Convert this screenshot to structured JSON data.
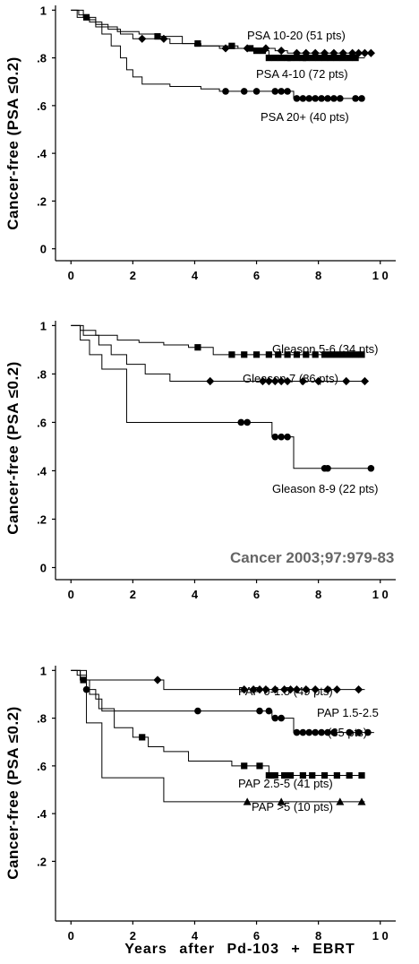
{
  "citation": "Cancer 2003;97:979-83",
  "x_axis_label": "Years after Pd-103 + EBRT",
  "colors": {
    "line": "#000000",
    "citation": "#666666"
  },
  "chart_data": [
    {
      "type": "line",
      "ylabel": "Cancer-free (PSA ≤0.2)",
      "xlim": [
        -0.5,
        10.5
      ],
      "ylim": [
        -0.05,
        1.02
      ],
      "x_ticks": [
        0,
        2,
        4,
        6,
        8,
        10
      ],
      "x_tick_labels": [
        "0",
        "2",
        "4",
        "6",
        "8",
        "1 0"
      ],
      "y_ticks": [
        0,
        0.2,
        0.4,
        0.6,
        0.8,
        1.0
      ],
      "y_tick_labels": [
        "0",
        ".2",
        ".4",
        ".6",
        ".8",
        "1"
      ],
      "series": [
        {
          "name": "PSA 10-20 (51 pts)",
          "marker": "diamond",
          "x": [
            0,
            0.25,
            0.5,
            0.8,
            1.2,
            1.6,
            2.0,
            2.3,
            2.5,
            2.8,
            3.2,
            3.6,
            4.0,
            4.8,
            5.6,
            6.2,
            6.6,
            7.0,
            8.0,
            9.5
          ],
          "y": [
            1.0,
            0.98,
            0.96,
            0.94,
            0.92,
            0.9,
            0.88,
            0.88,
            0.88,
            0.88,
            0.86,
            0.86,
            0.85,
            0.84,
            0.84,
            0.84,
            0.83,
            0.82,
            0.82,
            0.82
          ],
          "censored": [
            2.3,
            3.0,
            5.0,
            5.7,
            6.3,
            6.8,
            7.3,
            7.6,
            7.9,
            8.2,
            8.5,
            8.8,
            9.1,
            9.3,
            9.5,
            9.7
          ]
        },
        {
          "name": "PSA 4-10 (72 pts)",
          "marker": "square",
          "x": [
            0,
            0.2,
            0.6,
            1.0,
            1.5,
            2.2,
            2.8,
            3.6,
            4.2,
            5.4,
            6.0,
            6.4,
            9.5
          ],
          "y": [
            1.0,
            0.97,
            0.95,
            0.93,
            0.91,
            0.9,
            0.89,
            0.86,
            0.85,
            0.84,
            0.83,
            0.8,
            0.8
          ],
          "censored": [
            0.5,
            2.8,
            4.1,
            5.2,
            5.8,
            6.0,
            6.2,
            6.4,
            6.6,
            6.8,
            7.0,
            7.1,
            7.3,
            7.5,
            7.6,
            7.8,
            8.0,
            8.2,
            8.4,
            8.6,
            8.8,
            9.0,
            9.2
          ]
        },
        {
          "name": "PSA 20+ (40 pts)",
          "marker": "circle",
          "x": [
            0,
            0.4,
            0.8,
            1.0,
            1.3,
            1.6,
            1.8,
            2.0,
            2.3,
            3.2,
            4.2,
            4.8,
            5.4,
            7.2,
            9.5
          ],
          "y": [
            1.0,
            0.97,
            0.93,
            0.9,
            0.85,
            0.8,
            0.75,
            0.72,
            0.69,
            0.68,
            0.67,
            0.66,
            0.66,
            0.63,
            0.63
          ],
          "censored": [
            5.0,
            5.6,
            6.0,
            6.6,
            6.8,
            7.0,
            7.3,
            7.5,
            7.7,
            7.9,
            8.1,
            8.3,
            8.5,
            8.7,
            9.2,
            9.4
          ]
        }
      ]
    },
    {
      "type": "line",
      "ylabel": "Cancer-free (PSA ≤0.2)",
      "xlim": [
        -0.5,
        10.5
      ],
      "ylim": [
        -0.05,
        1.02
      ],
      "x_ticks": [
        0,
        2,
        4,
        6,
        8,
        10
      ],
      "x_tick_labels": [
        "0",
        "2",
        "4",
        "6",
        "8",
        "1 0"
      ],
      "y_ticks": [
        0,
        0.2,
        0.4,
        0.6,
        0.8,
        1.0
      ],
      "y_tick_labels": [
        "0",
        ".2",
        ".4",
        ".6",
        ".8",
        "1"
      ],
      "series": [
        {
          "name": "Gleason 5-6 (34 pts)",
          "marker": "square",
          "x": [
            0,
            0.3,
            0.8,
            1.5,
            2.2,
            3.0,
            3.8,
            4.6,
            9.5
          ],
          "y": [
            1.0,
            0.98,
            0.96,
            0.94,
            0.93,
            0.92,
            0.91,
            0.88,
            0.88
          ],
          "censored": [
            4.1,
            5.2,
            5.6,
            6.0,
            6.4,
            6.7,
            7.0,
            7.3,
            7.6,
            7.9,
            8.2,
            8.4,
            8.6,
            8.8,
            9.0,
            9.2,
            9.4
          ]
        },
        {
          "name": "Gleason 7 (86 pts)",
          "marker": "diamond",
          "x": [
            0,
            0.4,
            0.9,
            1.3,
            1.8,
            2.4,
            3.2,
            4.5,
            9.5
          ],
          "y": [
            1.0,
            0.96,
            0.92,
            0.88,
            0.84,
            0.8,
            0.77,
            0.77,
            0.77
          ],
          "censored": [
            4.5,
            6.2,
            6.4,
            6.6,
            6.8,
            7.0,
            7.5,
            8.0,
            8.9,
            9.5
          ]
        },
        {
          "name": "Gleason 8-9 (22 pts)",
          "marker": "circle",
          "x": [
            0,
            0.3,
            0.6,
            1.0,
            1.8,
            5.5,
            6.5,
            7.2,
            9.8
          ],
          "y": [
            1.0,
            0.94,
            0.88,
            0.82,
            0.6,
            0.6,
            0.54,
            0.41,
            0.41
          ],
          "censored": [
            5.5,
            5.7,
            6.6,
            6.8,
            7.0,
            8.2,
            8.3,
            9.7
          ]
        }
      ]
    },
    {
      "type": "line",
      "ylabel": "Cancer-free (PSA ≤0.2)",
      "xlim": [
        -0.5,
        10.5
      ],
      "ylim": [
        -0.05,
        1.02
      ],
      "x_ticks": [
        0,
        2,
        4,
        6,
        8,
        10
      ],
      "x_tick_labels": [
        "0",
        "2",
        "4",
        "6",
        "8",
        "1 0"
      ],
      "y_ticks": [
        0.2,
        0.4,
        0.6,
        0.8,
        1.0
      ],
      "y_tick_labels": [
        ".2",
        ".4",
        ".6",
        ".8",
        "1"
      ],
      "series": [
        {
          "name": "PAP 0-1.5 (49 pts)",
          "marker": "diamond",
          "x": [
            0,
            0.2,
            0.5,
            3.0,
            9.5
          ],
          "y": [
            1.0,
            0.98,
            0.96,
            0.92,
            0.92
          ],
          "censored": [
            2.8,
            5.6,
            5.9,
            6.1,
            6.3,
            6.6,
            6.9,
            7.1,
            7.3,
            7.6,
            7.9,
            8.3,
            8.6,
            9.3
          ]
        },
        {
          "name": "PAP 1.5-2.5 (35 pts)",
          "marker": "circle",
          "x": [
            0,
            0.3,
            0.5,
            0.8,
            1.0,
            6.0,
            6.5,
            7.2,
            9.8
          ],
          "y": [
            1.0,
            0.96,
            0.92,
            0.88,
            0.83,
            0.83,
            0.8,
            0.74,
            0.74
          ],
          "censored": [
            0.5,
            4.1,
            6.1,
            6.4,
            6.6,
            6.8,
            7.3,
            7.5,
            7.7,
            7.9,
            8.1,
            8.3,
            8.5,
            9.0,
            9.3,
            9.6
          ]
        },
        {
          "name": "PAP 2.5-5 (41 pts)",
          "marker": "square",
          "x": [
            0,
            0.3,
            0.6,
            0.9,
            1.4,
            2.0,
            2.5,
            3.0,
            3.8,
            5.2,
            6.4,
            9.5
          ],
          "y": [
            1.0,
            0.96,
            0.9,
            0.84,
            0.76,
            0.72,
            0.68,
            0.66,
            0.62,
            0.6,
            0.56,
            0.56
          ],
          "censored": [
            0.4,
            2.3,
            5.6,
            6.1,
            6.4,
            6.6,
            6.9,
            7.1,
            7.5,
            7.8,
            8.2,
            8.6,
            9.0,
            9.4
          ]
        },
        {
          "name": "PAP >5 (10 pts)",
          "marker": "triangle",
          "x": [
            0,
            0.5,
            1.0,
            3.0,
            9.5
          ],
          "y": [
            1.0,
            0.78,
            0.55,
            0.45,
            0.45
          ],
          "censored": [
            5.7,
            6.8,
            8.7,
            9.4
          ]
        }
      ]
    }
  ]
}
